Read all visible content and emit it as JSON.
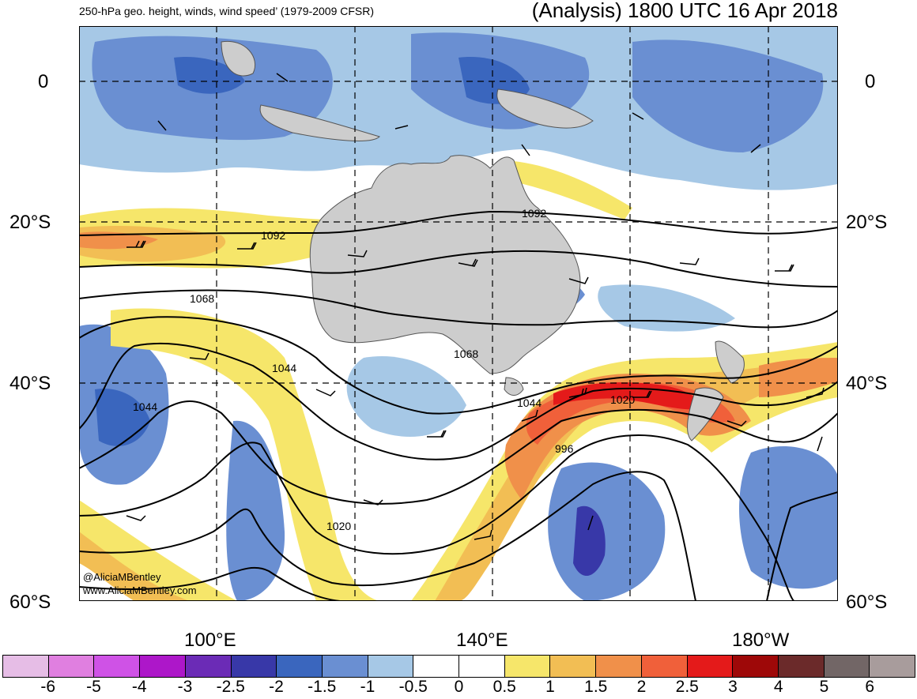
{
  "header": {
    "left_title": "250-hPa geo. height, winds, wind speed’ (1979-2009 CFSR)",
    "right_title": "(Analysis) 1800 UTC 16 Apr 2018"
  },
  "axes": {
    "lat_labels": [
      "0",
      "20°S",
      "40°S",
      "60°S"
    ],
    "lon_labels": [
      "100°E",
      "140°E",
      "180°W"
    ]
  },
  "contour_labels": [
    "1092",
    "1092",
    "1068",
    "1068",
    "1044",
    "1044",
    "1044",
    "1020",
    "1020",
    "996"
  ],
  "colorbar": {
    "ticks": [
      "-6",
      "-5",
      "-4",
      "-3",
      "-2.5",
      "-2",
      "-1.5",
      "-1",
      "-0.5",
      "0",
      "0.5",
      "1",
      "1.5",
      "2",
      "2.5",
      "3",
      "4",
      "5",
      "6"
    ],
    "colors": [
      "#e6bde6",
      "#e07fe0",
      "#cf52e6",
      "#ad17c9",
      "#6b2bb6",
      "#3838a8",
      "#3a66be",
      "#6a8fd2",
      "#a6c8e6",
      "#ffffff",
      "#ffffff",
      "#f6e66a",
      "#f2be54",
      "#f0904a",
      "#f0603a",
      "#e41a1a",
      "#9e0808",
      "#6b2a2a",
      "#726666",
      "#a89c9c"
    ]
  },
  "credits": {
    "handle": "@AliciaMBentley",
    "website": "www.AliciaMBentley.com"
  },
  "colors": {
    "land": "#cdcdcd",
    "coast": "#555555"
  }
}
